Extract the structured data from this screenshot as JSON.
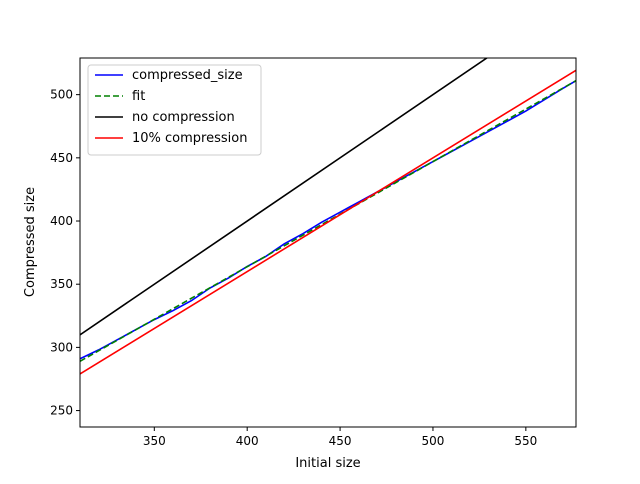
{
  "chart_data": {
    "type": "line",
    "xlabel": "Initial size",
    "ylabel": "Compressed size",
    "xlim": [
      310,
      577
    ],
    "ylim": [
      237,
      529
    ],
    "xticks": [
      350,
      400,
      450,
      500,
      550
    ],
    "yticks": [
      250,
      300,
      350,
      400,
      450,
      500
    ],
    "grid": false,
    "legend_position": "top-left",
    "series": [
      {
        "name": "compressed_size",
        "color": "#0000ff",
        "style": "solid",
        "x": [
          310,
          320,
          330,
          340,
          350,
          360,
          370,
          380,
          390,
          400,
          410,
          420,
          430,
          440,
          450,
          455,
          460,
          470,
          480,
          490,
          500,
          510,
          520,
          530,
          540,
          550,
          560,
          570,
          577
        ],
        "y": [
          291,
          298,
          306,
          314,
          322,
          329,
          337,
          347,
          355,
          364,
          372,
          382,
          390,
          399,
          407,
          411,
          415,
          423,
          431,
          439,
          447,
          455,
          463,
          471,
          479,
          487,
          496,
          505,
          511
        ]
      },
      {
        "name": "fit",
        "color": "#008000",
        "style": "dashed",
        "x": [
          310,
          577
        ],
        "y": [
          289,
          511
        ]
      },
      {
        "name": "no compression",
        "color": "#000000",
        "style": "solid",
        "x": [
          310,
          577
        ],
        "y": [
          310,
          577
        ]
      },
      {
        "name": "10% compression",
        "color": "#ff0000",
        "style": "solid",
        "x": [
          310,
          577
        ],
        "y": [
          279,
          519.3
        ]
      }
    ]
  }
}
